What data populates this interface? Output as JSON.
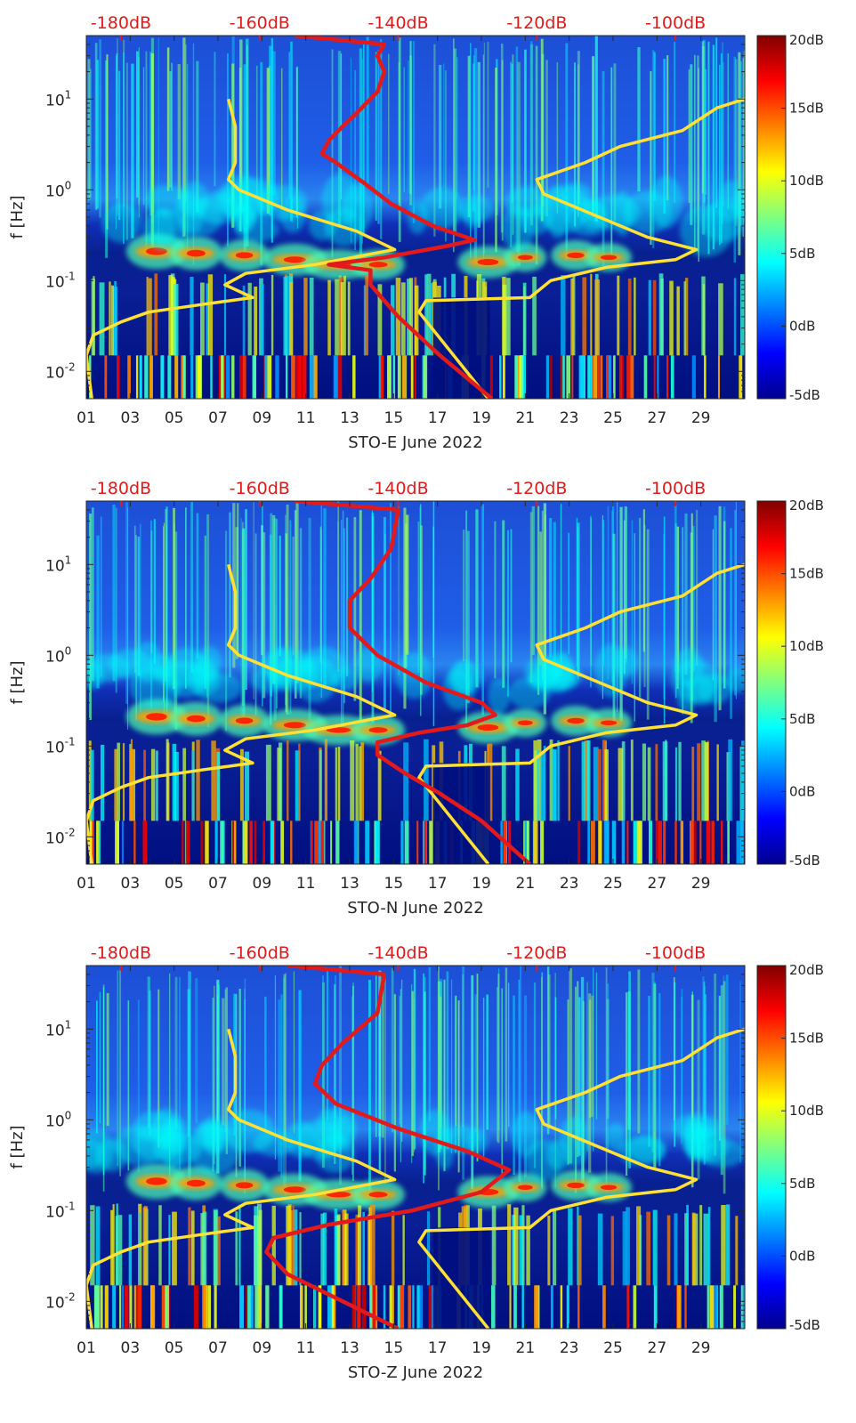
{
  "chart_data": [
    {
      "type": "heatmap",
      "title": "",
      "xlabel": "STO-E June 2022",
      "ylabel": "f [Hz]",
      "x_ticks": [
        "01",
        "03",
        "05",
        "07",
        "09",
        "11",
        "13",
        "15",
        "17",
        "19",
        "21",
        "23",
        "25",
        "27",
        "29"
      ],
      "y_tick_labels": [
        {
          "base": "10",
          "exp": "-2",
          "value": 0.01
        },
        {
          "base": "10",
          "exp": "-1",
          "value": 0.1
        },
        {
          "base": "10",
          "exp": "0",
          "value": 1
        },
        {
          "base": "10",
          "exp": "1",
          "value": 10
        }
      ],
      "yscale": "log",
      "ylim": [
        0.005,
        50
      ],
      "xlim": [
        1,
        31
      ],
      "top_axis_ticks": [
        "-180dB",
        "-160dB",
        "-140dB",
        "-120dB",
        "-100dB"
      ],
      "top_axis_range_dB": [
        -185,
        -90
      ],
      "colorbar": {
        "ticks": [
          "20dB",
          "15dB",
          "10dB",
          "5dB",
          "0dB",
          "-5dB"
        ],
        "range": [
          -5,
          20
        ],
        "colormap": "jet"
      },
      "series": [
        {
          "color": "#ffe135",
          "note_axis": "top dB",
          "points": [
            [
              -184.2,
              0.005
            ],
            [
              -185,
              0.015
            ],
            [
              -184,
              0.025
            ],
            [
              -180,
              0.035
            ],
            [
              -176,
              0.045
            ],
            [
              -168,
              0.055
            ],
            [
              -161,
              0.065
            ],
            [
              -165,
              0.09
            ],
            [
              -162,
              0.12
            ],
            [
              -152,
              0.15
            ],
            [
              -140.5,
              0.22
            ],
            [
              -146,
              0.35
            ],
            [
              -156,
              0.6
            ],
            [
              -163,
              1.0
            ],
            [
              -164.5,
              1.3
            ],
            [
              -163.5,
              2.0
            ],
            [
              -163.5,
              5.0
            ],
            [
              -164.5,
              10.0
            ]
          ]
        },
        {
          "color": "#ffe135",
          "note_axis": "top dB",
          "points": [
            [
              -127,
              0.005
            ],
            [
              -137,
              0.045
            ],
            [
              -136,
              0.06
            ],
            [
              -121,
              0.065
            ],
            [
              -118,
              0.1
            ],
            [
              -110,
              0.14
            ],
            [
              -100,
              0.17
            ],
            [
              -97,
              0.22
            ],
            [
              -104,
              0.3
            ],
            [
              -119,
              0.9
            ],
            [
              -120,
              1.3
            ],
            [
              -113,
              2.0
            ],
            [
              -108,
              3.0
            ],
            [
              -99,
              4.5
            ],
            [
              -94,
              8.0
            ],
            [
              -90,
              10.0
            ]
          ]
        },
        {
          "color": "#e31a1c",
          "note_axis": "top dB",
          "points": [
            [
              -126.5,
              0.005
            ],
            [
              -134,
              0.015
            ],
            [
              -140,
              0.04
            ],
            [
              -142,
              0.06
            ],
            [
              -144,
              0.09
            ],
            [
              -144,
              0.13
            ],
            [
              -150,
              0.15
            ],
            [
              -142,
              0.18
            ],
            [
              -133,
              0.24
            ],
            [
              -129,
              0.28
            ],
            [
              -135,
              0.4
            ],
            [
              -141,
              0.7
            ],
            [
              -145,
              1.2
            ],
            [
              -149,
              2.0
            ],
            [
              -151,
              2.5
            ],
            [
              -150,
              3.5
            ],
            [
              -148,
              5.0
            ],
            [
              -146,
              7.0
            ],
            [
              -143,
              12.0
            ],
            [
              -142,
              20.0
            ],
            [
              -143,
              30.0
            ],
            [
              -142,
              40.0
            ],
            [
              -155,
              50.0
            ]
          ]
        }
      ]
    },
    {
      "type": "heatmap",
      "title": "",
      "xlabel": "STO-N June 2022",
      "ylabel": "f [Hz]",
      "x_ticks": [
        "01",
        "03",
        "05",
        "07",
        "09",
        "11",
        "13",
        "15",
        "17",
        "19",
        "21",
        "23",
        "25",
        "27",
        "29"
      ],
      "y_tick_labels": [
        {
          "base": "10",
          "exp": "-2",
          "value": 0.01
        },
        {
          "base": "10",
          "exp": "-1",
          "value": 0.1
        },
        {
          "base": "10",
          "exp": "0",
          "value": 1
        },
        {
          "base": "10",
          "exp": "1",
          "value": 10
        }
      ],
      "yscale": "log",
      "ylim": [
        0.005,
        50
      ],
      "xlim": [
        1,
        31
      ],
      "top_axis_ticks": [
        "-180dB",
        "-160dB",
        "-140dB",
        "-120dB",
        "-100dB"
      ],
      "top_axis_range_dB": [
        -185,
        -90
      ],
      "colorbar": {
        "ticks": [
          "20dB",
          "15dB",
          "10dB",
          "5dB",
          "0dB",
          "-5dB"
        ],
        "range": [
          -5,
          20
        ],
        "colormap": "jet"
      },
      "series": [
        {
          "color": "#ffe135",
          "note_axis": "top dB",
          "points": [
            [
              -184.2,
              0.005
            ],
            [
              -185,
              0.015
            ],
            [
              -184,
              0.025
            ],
            [
              -180,
              0.035
            ],
            [
              -176,
              0.045
            ],
            [
              -168,
              0.055
            ],
            [
              -161,
              0.065
            ],
            [
              -165,
              0.09
            ],
            [
              -162,
              0.12
            ],
            [
              -152,
              0.15
            ],
            [
              -140.5,
              0.22
            ],
            [
              -146,
              0.35
            ],
            [
              -156,
              0.6
            ],
            [
              -163,
              1.0
            ],
            [
              -164.5,
              1.3
            ],
            [
              -163.5,
              2.0
            ],
            [
              -163.5,
              5.0
            ],
            [
              -164.5,
              10.0
            ]
          ]
        },
        {
          "color": "#ffe135",
          "note_axis": "top dB",
          "points": [
            [
              -127,
              0.005
            ],
            [
              -137,
              0.045
            ],
            [
              -136,
              0.06
            ],
            [
              -121,
              0.065
            ],
            [
              -118,
              0.1
            ],
            [
              -110,
              0.14
            ],
            [
              -100,
              0.17
            ],
            [
              -97,
              0.22
            ],
            [
              -104,
              0.3
            ],
            [
              -119,
              0.9
            ],
            [
              -120,
              1.3
            ],
            [
              -113,
              2.0
            ],
            [
              -108,
              3.0
            ],
            [
              -99,
              4.5
            ],
            [
              -94,
              8.0
            ],
            [
              -90,
              10.0
            ]
          ]
        },
        {
          "color": "#e31a1c",
          "note_axis": "top dB",
          "points": [
            [
              -121,
              0.005
            ],
            [
              -128,
              0.015
            ],
            [
              -134,
              0.03
            ],
            [
              -139,
              0.05
            ],
            [
              -143,
              0.08
            ],
            [
              -143,
              0.11
            ],
            [
              -137,
              0.14
            ],
            [
              -130,
              0.17
            ],
            [
              -126,
              0.22
            ],
            [
              -128,
              0.3
            ],
            [
              -136,
              0.5
            ],
            [
              -143,
              1.0
            ],
            [
              -147,
              2.0
            ],
            [
              -147,
              4.0
            ],
            [
              -144,
              7.0
            ],
            [
              -141,
              15.0
            ],
            [
              -140,
              40.0
            ],
            [
              -155,
              50.0
            ]
          ]
        }
      ]
    },
    {
      "type": "heatmap",
      "title": "",
      "xlabel": "STO-Z June 2022",
      "ylabel": "f [Hz]",
      "x_ticks": [
        "01",
        "03",
        "05",
        "07",
        "09",
        "11",
        "13",
        "15",
        "17",
        "19",
        "21",
        "23",
        "25",
        "27",
        "29"
      ],
      "y_tick_labels": [
        {
          "base": "10",
          "exp": "-2",
          "value": 0.01
        },
        {
          "base": "10",
          "exp": "-1",
          "value": 0.1
        },
        {
          "base": "10",
          "exp": "0",
          "value": 1
        },
        {
          "base": "10",
          "exp": "1",
          "value": 10
        }
      ],
      "yscale": "log",
      "ylim": [
        0.005,
        50
      ],
      "xlim": [
        1,
        31
      ],
      "top_axis_ticks": [
        "-180dB",
        "-160dB",
        "-140dB",
        "-120dB",
        "-100dB"
      ],
      "top_axis_range_dB": [
        -185,
        -90
      ],
      "colorbar": {
        "ticks": [
          "20dB",
          "15dB",
          "10dB",
          "5dB",
          "0dB",
          "-5dB"
        ],
        "range": [
          -5,
          20
        ],
        "colormap": "jet"
      },
      "series": [
        {
          "color": "#ffe135",
          "note_axis": "top dB",
          "points": [
            [
              -184.2,
              0.005
            ],
            [
              -185,
              0.015
            ],
            [
              -184,
              0.025
            ],
            [
              -180,
              0.035
            ],
            [
              -176,
              0.045
            ],
            [
              -168,
              0.055
            ],
            [
              -161,
              0.065
            ],
            [
              -165,
              0.09
            ],
            [
              -162,
              0.12
            ],
            [
              -152,
              0.15
            ],
            [
              -140.5,
              0.22
            ],
            [
              -146,
              0.35
            ],
            [
              -156,
              0.6
            ],
            [
              -163,
              1.0
            ],
            [
              -164.5,
              1.3
            ],
            [
              -163.5,
              2.0
            ],
            [
              -163.5,
              5.0
            ],
            [
              -164.5,
              10.0
            ]
          ]
        },
        {
          "color": "#ffe135",
          "note_axis": "top dB",
          "points": [
            [
              -127,
              0.005
            ],
            [
              -137,
              0.045
            ],
            [
              -136,
              0.06
            ],
            [
              -121,
              0.065
            ],
            [
              -118,
              0.1
            ],
            [
              -110,
              0.14
            ],
            [
              -100,
              0.17
            ],
            [
              -97,
              0.22
            ],
            [
              -104,
              0.3
            ],
            [
              -119,
              0.9
            ],
            [
              -120,
              1.3
            ],
            [
              -113,
              2.0
            ],
            [
              -108,
              3.0
            ],
            [
              -99,
              4.5
            ],
            [
              -94,
              8.0
            ],
            [
              -90,
              10.0
            ]
          ]
        },
        {
          "color": "#e31a1c",
          "note_axis": "top dB",
          "points": [
            [
              -140,
              0.005
            ],
            [
              -148,
              0.01
            ],
            [
              -156,
              0.02
            ],
            [
              -159,
              0.035
            ],
            [
              -158,
              0.05
            ],
            [
              -150,
              0.07
            ],
            [
              -138,
              0.1
            ],
            [
              -128,
              0.16
            ],
            [
              -124,
              0.28
            ],
            [
              -130,
              0.45
            ],
            [
              -140,
              0.8
            ],
            [
              -149,
              1.5
            ],
            [
              -152,
              2.5
            ],
            [
              -151,
              4.0
            ],
            [
              -148,
              7.0
            ],
            [
              -143,
              15.0
            ],
            [
              -142,
              40.0
            ],
            [
              -156,
              50.0
            ]
          ]
        }
      ]
    }
  ]
}
